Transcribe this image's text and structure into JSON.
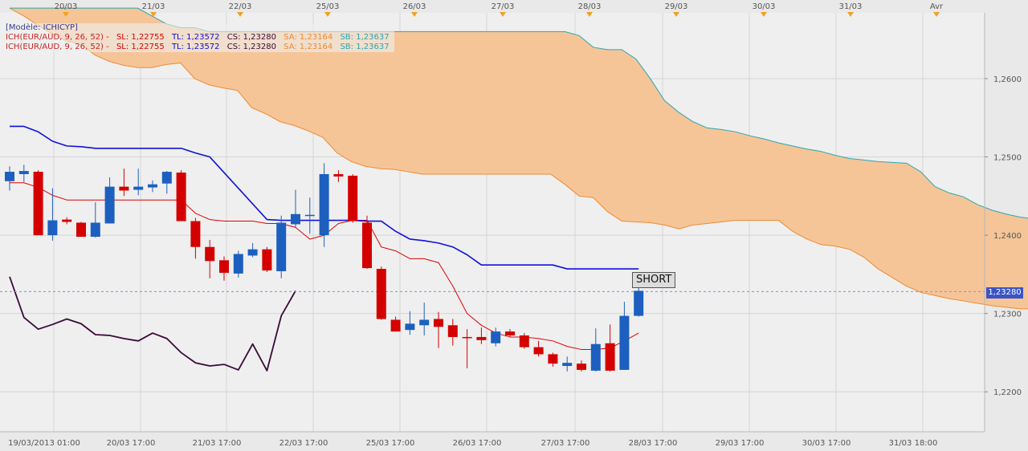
{
  "legend": {
    "model": "[Modèle: ICHICYP]",
    "rows": [
      {
        "instrument": "ICH(EUR/AUD, 9, 26, 52) -",
        "sl": "SL: 1,22755",
        "tl": "TL: 1,23572",
        "cs": "CS: 1,23280",
        "sa": "SA: 1,23164",
        "sb": "SB: 1,23637"
      },
      {
        "instrument": "ICH(EUR/AUD, 9, 26, 52) -",
        "sl": "SL: 1,22755",
        "tl": "TL: 1,23572",
        "cs": "CS: 1,23280",
        "sa": "SA: 1,23164",
        "sb": "SB: 1,23637"
      }
    ]
  },
  "signal": {
    "label": "SHORT"
  },
  "current_price": {
    "label": "1,23280",
    "value": 1.2328
  },
  "colors": {
    "bull": "#1c5fbf",
    "bear": "#d40000",
    "tenkan": "#e00000",
    "kijun": "#1010dd",
    "chikou": "#3a0a3a",
    "cloud_fill": "#f5c598",
    "span_a": "#f08a30",
    "span_b": "#2aa6b0",
    "price_line": "#8a8af0",
    "marker": "#f5a021",
    "price_tag_bg": "#3a53c7"
  },
  "chart_data": {
    "type": "candlestick",
    "title": "",
    "top_axis_labels": [
      "20/03",
      "21/03",
      "22/03",
      "25/03",
      "26/03",
      "27/03",
      "28/03",
      "29/03",
      "30/03",
      "31/03",
      "Avr"
    ],
    "bottom_axis_labels": [
      "19/03/2013 01:00",
      "20/03 17:00",
      "21/03 17:00",
      "22/03 17:00",
      "25/03 17:00",
      "26/03 17:00",
      "27/03 17:00",
      "28/03 17:00",
      "29/03 17:00",
      "30/03 17:00",
      "31/03 18:00"
    ],
    "y_ticks": [
      "1,2600",
      "1,2500",
      "1,2400",
      "1,2300",
      "1,2200"
    ],
    "y_tick_values": [
      1.26,
      1.25,
      1.24,
      1.23,
      1.22
    ],
    "ylim": [
      1.2149,
      1.2684
    ],
    "grid": true,
    "candles": [
      {
        "o": 1.2469,
        "h": 1.2488,
        "l": 1.2457,
        "c": 1.2481
      },
      {
        "o": 1.2478,
        "h": 1.249,
        "l": 1.2468,
        "c": 1.2482
      },
      {
        "o": 1.2481,
        "h": 1.2483,
        "l": 1.24,
        "c": 1.24
      },
      {
        "o": 1.24,
        "h": 1.246,
        "l": 1.2393,
        "c": 1.2419
      },
      {
        "o": 1.242,
        "h": 1.2423,
        "l": 1.2414,
        "c": 1.2417
      },
      {
        "o": 1.2416,
        "h": 1.2417,
        "l": 1.2398,
        "c": 1.2398
      },
      {
        "o": 1.2398,
        "h": 1.2442,
        "l": 1.2397,
        "c": 1.2416
      },
      {
        "o": 1.2415,
        "h": 1.2474,
        "l": 1.2415,
        "c": 1.2462
      },
      {
        "o": 1.2462,
        "h": 1.2485,
        "l": 1.245,
        "c": 1.2457
      },
      {
        "o": 1.2458,
        "h": 1.2485,
        "l": 1.2451,
        "c": 1.2462
      },
      {
        "o": 1.2461,
        "h": 1.247,
        "l": 1.2455,
        "c": 1.2465
      },
      {
        "o": 1.2466,
        "h": 1.2482,
        "l": 1.2453,
        "c": 1.2481
      },
      {
        "o": 1.248,
        "h": 1.2483,
        "l": 1.2418,
        "c": 1.2418
      },
      {
        "o": 1.2418,
        "h": 1.2422,
        "l": 1.237,
        "c": 1.2385
      },
      {
        "o": 1.2385,
        "h": 1.2394,
        "l": 1.2345,
        "c": 1.2367
      },
      {
        "o": 1.2368,
        "h": 1.2373,
        "l": 1.2342,
        "c": 1.2352
      },
      {
        "o": 1.2351,
        "h": 1.238,
        "l": 1.2346,
        "c": 1.2376
      },
      {
        "o": 1.2374,
        "h": 1.239,
        "l": 1.2372,
        "c": 1.2382
      },
      {
        "o": 1.2382,
        "h": 1.2385,
        "l": 1.2353,
        "c": 1.2355
      },
      {
        "o": 1.2354,
        "h": 1.2425,
        "l": 1.2345,
        "c": 1.2416
      },
      {
        "o": 1.2414,
        "h": 1.2458,
        "l": 1.241,
        "c": 1.2427
      },
      {
        "o": 1.2426,
        "h": 1.2448,
        "l": 1.2402,
        "c": 1.2426
      },
      {
        "o": 1.24,
        "h": 1.2492,
        "l": 1.2385,
        "c": 1.2478
      },
      {
        "o": 1.2478,
        "h": 1.2483,
        "l": 1.2468,
        "c": 1.2475
      },
      {
        "o": 1.2476,
        "h": 1.2478,
        "l": 1.2416,
        "c": 1.2418
      },
      {
        "o": 1.2416,
        "h": 1.2425,
        "l": 1.2357,
        "c": 1.2358
      },
      {
        "o": 1.2357,
        "h": 1.236,
        "l": 1.2292,
        "c": 1.2293
      },
      {
        "o": 1.2292,
        "h": 1.2296,
        "l": 1.2277,
        "c": 1.2277
      },
      {
        "o": 1.2279,
        "h": 1.2303,
        "l": 1.2273,
        "c": 1.2287
      },
      {
        "o": 1.2285,
        "h": 1.2314,
        "l": 1.2272,
        "c": 1.2292
      },
      {
        "o": 1.2293,
        "h": 1.2302,
        "l": 1.2256,
        "c": 1.2283
      },
      {
        "o": 1.2285,
        "h": 1.2293,
        "l": 1.2259,
        "c": 1.227
      },
      {
        "o": 1.227,
        "h": 1.228,
        "l": 1.223,
        "c": 1.2269
      },
      {
        "o": 1.227,
        "h": 1.2282,
        "l": 1.2261,
        "c": 1.2266
      },
      {
        "o": 1.2262,
        "h": 1.2282,
        "l": 1.2258,
        "c": 1.2277
      },
      {
        "o": 1.2277,
        "h": 1.228,
        "l": 1.227,
        "c": 1.2272
      },
      {
        "o": 1.2272,
        "h": 1.2275,
        "l": 1.2255,
        "c": 1.2257
      },
      {
        "o": 1.2257,
        "h": 1.2265,
        "l": 1.2245,
        "c": 1.2248
      },
      {
        "o": 1.2248,
        "h": 1.225,
        "l": 1.2232,
        "c": 1.2236
      },
      {
        "o": 1.2233,
        "h": 1.2245,
        "l": 1.2226,
        "c": 1.2237
      },
      {
        "o": 1.2236,
        "h": 1.224,
        "l": 1.2226,
        "c": 1.2228
      },
      {
        "o": 1.2227,
        "h": 1.2281,
        "l": 1.2226,
        "c": 1.2261
      },
      {
        "o": 1.2262,
        "h": 1.2286,
        "l": 1.2226,
        "c": 1.2227
      },
      {
        "o": 1.2228,
        "h": 1.2315,
        "l": 1.2228,
        "c": 1.2297
      },
      {
        "o": 1.2297,
        "h": 1.2334,
        "l": 1.2296,
        "c": 1.2329
      }
    ],
    "tenkan": [
      1.2467,
      1.2467,
      1.2461,
      1.2451,
      1.2445,
      1.2445,
      1.2445,
      1.2445,
      1.2445,
      1.2445,
      1.2445,
      1.2445,
      1.2445,
      1.2428,
      1.242,
      1.2418,
      1.2418,
      1.2418,
      1.2415,
      1.2415,
      1.241,
      1.2395,
      1.24,
      1.2415,
      1.2419,
      1.2419,
      1.2385,
      1.238,
      1.237,
      1.237,
      1.2365,
      1.2335,
      1.23,
      1.2285,
      1.2275,
      1.227,
      1.227,
      1.2268,
      1.2265,
      1.2258,
      1.2254,
      1.2254,
      1.2256,
      1.2265,
      1.2275
    ],
    "tenkan_start_index": 0,
    "kijun": [
      1.2539,
      1.2539,
      1.2532,
      1.252,
      1.2514,
      1.2513,
      1.2511,
      1.2511,
      1.2511,
      1.2511,
      1.2511,
      1.2511,
      1.2511,
      1.2505,
      1.25,
      1.248,
      1.246,
      1.244,
      1.242,
      1.2419,
      1.2419,
      1.2419,
      1.2419,
      1.2419,
      1.2419,
      1.2418,
      1.2418,
      1.2405,
      1.2395,
      1.2393,
      1.239,
      1.2385,
      1.2375,
      1.2362,
      1.2362,
      1.2362,
      1.2362,
      1.2362,
      1.2362,
      1.2357,
      1.2357,
      1.2357,
      1.2357,
      1.2357,
      1.2357
    ],
    "kijun_start_index": 0,
    "chikou": [
      1.2347,
      1.2295,
      1.228,
      1.2286,
      1.2293,
      1.2287,
      1.2273,
      1.2272,
      1.2268,
      1.2265,
      1.2275,
      1.2268,
      1.225,
      1.2237,
      1.2233,
      1.2235,
      1.2228,
      1.2261,
      1.2227,
      1.2297,
      1.2329
    ],
    "chikou_start_index": 0,
    "senkou_a": [
      1.269,
      1.268,
      1.2668,
      1.2657,
      1.2648,
      1.2644,
      1.263,
      1.2622,
      1.2617,
      1.2614,
      1.2614,
      1.2618,
      1.262,
      1.26,
      1.2592,
      1.2588,
      1.2585,
      1.2563,
      1.2555,
      1.2545,
      1.254,
      1.2533,
      1.2525,
      1.2505,
      1.2494,
      1.2488,
      1.2485,
      1.2484,
      1.2481,
      1.2478,
      1.2478,
      1.2478,
      1.2478,
      1.2478,
      1.2478,
      1.2478,
      1.2478,
      1.2478,
      1.2478,
      1.2465,
      1.245,
      1.2448,
      1.243,
      1.2418,
      1.2417,
      1.2416,
      1.2413,
      1.2408,
      1.2413,
      1.2415,
      1.2417,
      1.2419,
      1.2419,
      1.2419,
      1.2419,
      1.2405,
      1.2395,
      1.2388,
      1.2386,
      1.2382,
      1.2372,
      1.2357,
      1.2346,
      1.2335,
      1.2327,
      1.2323,
      1.2319,
      1.2316,
      1.2313,
      1.231,
      1.2308,
      1.2306,
      1.2306
    ],
    "senkou_b": [
      1.269,
      1.269,
      1.269,
      1.269,
      1.269,
      1.269,
      1.269,
      1.269,
      1.269,
      1.269,
      1.268,
      1.267,
      1.2665,
      1.2665,
      1.266,
      1.266,
      1.266,
      1.266,
      1.266,
      1.266,
      1.266,
      1.266,
      1.266,
      1.266,
      1.266,
      1.266,
      1.266,
      1.266,
      1.266,
      1.266,
      1.266,
      1.266,
      1.266,
      1.266,
      1.266,
      1.266,
      1.266,
      1.266,
      1.266,
      1.266,
      1.2655,
      1.264,
      1.2637,
      1.2637,
      1.2625,
      1.26,
      1.2572,
      1.2557,
      1.2545,
      1.2537,
      1.2535,
      1.2532,
      1.2527,
      1.2523,
      1.2518,
      1.2514,
      1.251,
      1.2507,
      1.2502,
      1.2498,
      1.2496,
      1.2494,
      1.2493,
      1.2492,
      1.2481,
      1.2462,
      1.2454,
      1.2449,
      1.2439,
      1.2432,
      1.2427,
      1.2423,
      1.2421
    ],
    "cloud_start_index": 0,
    "senkou_x_end_index": 71.7
  }
}
